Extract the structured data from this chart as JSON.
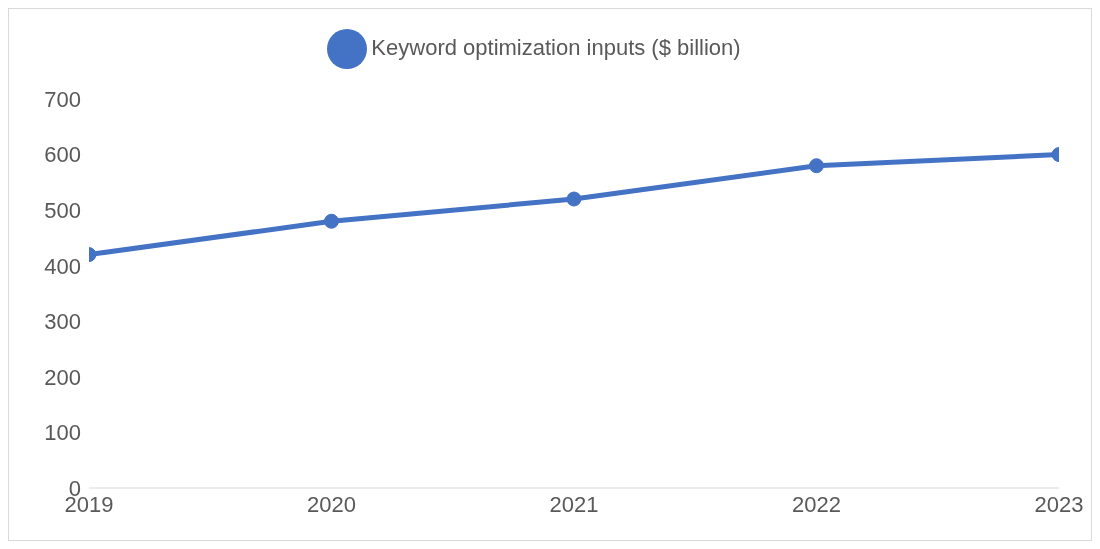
{
  "chart_data": {
    "type": "line",
    "categories": [
      "2019",
      "2020",
      "2021",
      "2022",
      "2023"
    ],
    "series": [
      {
        "name": "Keyword optimization inputs ($ billion)",
        "color": "#4472c4",
        "values": [
          420,
          480,
          520,
          580,
          600
        ]
      }
    ],
    "ylim": [
      0,
      700
    ],
    "yticks": [
      0,
      100,
      200,
      300,
      400,
      500,
      600,
      700
    ],
    "grid": false,
    "legend": "top",
    "marker": "circle",
    "line_style": "solid"
  }
}
